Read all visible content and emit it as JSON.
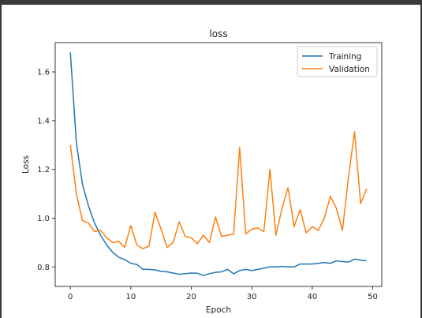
{
  "chart_data": {
    "type": "line",
    "title": "loss",
    "xlabel": "Epoch",
    "ylabel": "Loss",
    "xlim": [
      -2.5,
      51.5
    ],
    "ylim": [
      0.72,
      1.72
    ],
    "xticks": [
      0,
      10,
      20,
      30,
      40,
      50
    ],
    "yticks": [
      0.8,
      1.0,
      1.2,
      1.4,
      1.6
    ],
    "ytick_labels": [
      "0.8",
      "1.0",
      "1.2",
      "1.4",
      "1.6"
    ],
    "legend_position": "top-right",
    "grid": false,
    "x": [
      0,
      1,
      2,
      3,
      4,
      5,
      6,
      7,
      8,
      9,
      10,
      11,
      12,
      13,
      14,
      15,
      16,
      17,
      18,
      19,
      20,
      21,
      22,
      23,
      24,
      25,
      26,
      27,
      28,
      29,
      30,
      31,
      32,
      33,
      34,
      35,
      36,
      37,
      38,
      39,
      40,
      41,
      42,
      43,
      44,
      45,
      46,
      47,
      48,
      49
    ],
    "series": [
      {
        "name": "Training",
        "color": "#1f77b4",
        "values": [
          1.68,
          1.31,
          1.14,
          1.05,
          0.98,
          0.93,
          0.89,
          0.86,
          0.84,
          0.83,
          0.815,
          0.81,
          0.79,
          0.79,
          0.788,
          0.782,
          0.78,
          0.775,
          0.77,
          0.772,
          0.775,
          0.774,
          0.765,
          0.772,
          0.778,
          0.78,
          0.79,
          0.772,
          0.785,
          0.79,
          0.785,
          0.79,
          0.795,
          0.8,
          0.8,
          0.802,
          0.8,
          0.8,
          0.812,
          0.812,
          0.812,
          0.815,
          0.818,
          0.815,
          0.825,
          0.822,
          0.82,
          0.832,
          0.828,
          0.825
        ]
      },
      {
        "name": "Validation",
        "color": "#ff7f0e",
        "values": [
          1.3,
          1.1,
          0.99,
          0.98,
          0.945,
          0.95,
          0.92,
          0.9,
          0.905,
          0.88,
          0.97,
          0.89,
          0.875,
          0.885,
          1.025,
          0.955,
          0.88,
          0.9,
          0.985,
          0.925,
          0.92,
          0.895,
          0.93,
          0.9,
          1.005,
          0.925,
          0.93,
          0.935,
          1.29,
          0.935,
          0.955,
          0.96,
          0.945,
          1.2,
          0.93,
          1.04,
          1.125,
          0.965,
          1.035,
          0.94,
          0.965,
          0.95,
          1.0,
          1.09,
          1.04,
          0.95,
          1.17,
          1.355,
          1.06,
          1.12
        ]
      }
    ]
  }
}
